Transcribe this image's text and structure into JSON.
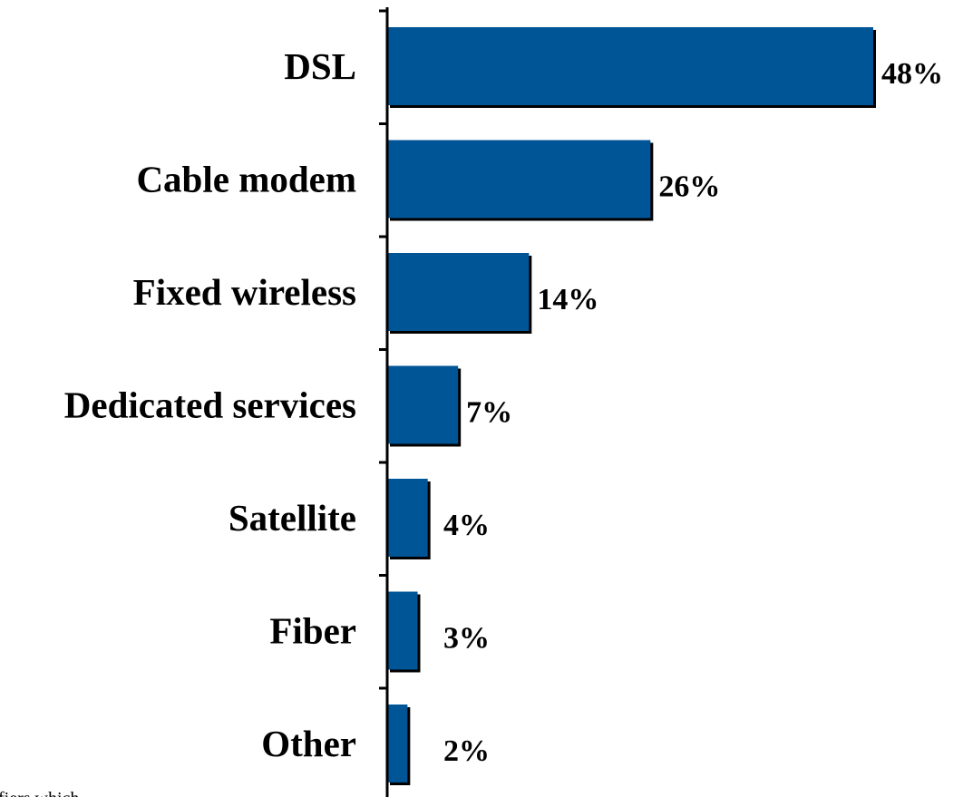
{
  "chart_data": {
    "type": "bar",
    "orientation": "horizontal",
    "categories": [
      "DSL",
      "Cable modem",
      "Fixed wireless",
      "Dedicated services",
      "Satellite",
      "Fiber",
      "Other"
    ],
    "values": [
      48,
      26,
      14,
      7,
      4,
      3,
      2
    ],
    "value_labels": [
      "48%",
      "26%",
      "14%",
      "7%",
      "4%",
      "3%",
      "2%"
    ],
    "xlim": [
      0,
      50
    ],
    "grid": false,
    "legend": "none",
    "bar_color": "#005596",
    "shadow_color": "#000000"
  },
  "footnote": "fiers which"
}
